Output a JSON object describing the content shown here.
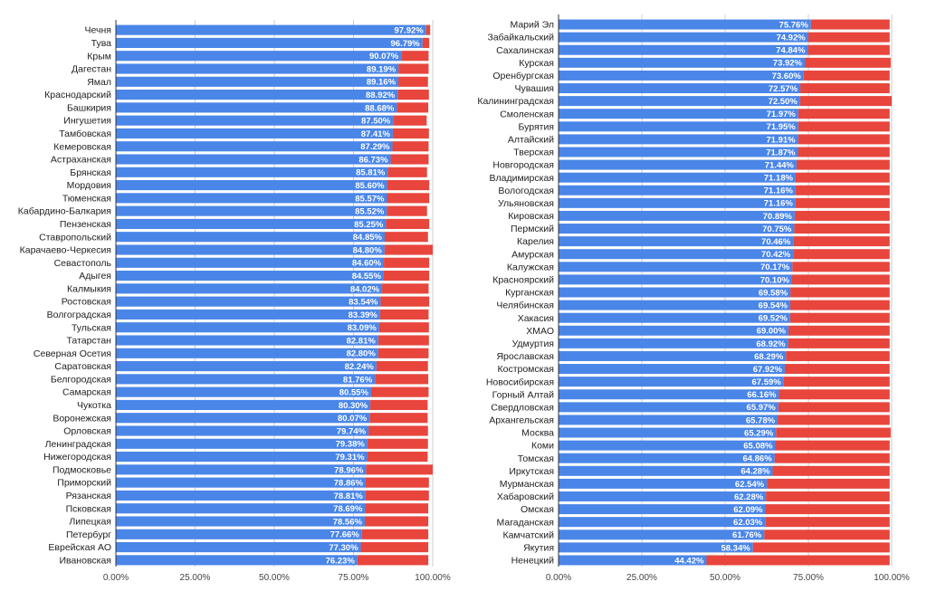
{
  "chart_data": [
    {
      "type": "bar",
      "orientation": "horizontal",
      "stacked": true,
      "percent_stacked": true,
      "grid": true,
      "legend": "none",
      "xlim": [
        0,
        100
      ],
      "xticks": [
        "0.00%",
        "25.00%",
        "50.00%",
        "75.00%",
        "100.00%"
      ],
      "colors": [
        "#4a86e8",
        "#e8453c"
      ],
      "categories": [
        "Чечня",
        "Тува",
        "Крым",
        "Дагестан",
        "Ямал",
        "Краснодарский",
        "Башкирия",
        "Ингушетия",
        "Тамбовская",
        "Кемеровская",
        "Астраханская",
        "Брянская",
        "Мордовия",
        "Тюменская",
        "Кабардино-Балкария",
        "Пензенская",
        "Ставропольский",
        "Карачаево-Черкесия",
        "Севастополь",
        "Адыгея",
        "Калмыкия",
        "Ростовская",
        "Волгоградская",
        "Тульская",
        "Татарстан",
        "Северная Осетия",
        "Саратовская",
        "Белгородская",
        "Самарская",
        "Чукотка",
        "Воронежская",
        "Орловская",
        "Ленинградская",
        "Нижегородская",
        "Подмосковье",
        "Приморский",
        "Рязанская",
        "Псковская",
        "Липецкая",
        "Петербург",
        "Еврейская АО",
        "Ивановская"
      ],
      "values": [
        97.92,
        96.79,
        90.07,
        89.19,
        89.16,
        88.92,
        88.68,
        87.5,
        87.41,
        87.29,
        86.73,
        85.81,
        85.6,
        85.57,
        85.52,
        85.25,
        84.85,
        84.8,
        84.6,
        84.55,
        84.02,
        83.54,
        83.39,
        83.09,
        82.81,
        82.8,
        82.24,
        81.76,
        80.55,
        80.3,
        80.07,
        79.74,
        79.38,
        79.31,
        78.96,
        78.86,
        78.81,
        78.69,
        78.56,
        77.66,
        77.3,
        76.23
      ],
      "value_labels": [
        "97.92%",
        "96.79%",
        "90.07%",
        "89.19%",
        "89.16%",
        "88.92%",
        "88.68%",
        "87.50%",
        "87.41%",
        "87.29%",
        "86.73%",
        "85.81%",
        "85.60%",
        "85.57%",
        "85.52%",
        "85.25%",
        "84.85%",
        "84.80%",
        "84.60%",
        "84.55%",
        "84.02%",
        "83.54%",
        "83.39%",
        "83.09%",
        "82.81%",
        "82.80%",
        "82.24%",
        "81.76%",
        "80.55%",
        "80.30%",
        "80.07%",
        "79.74%",
        "79.38%",
        "79.31%",
        "78.96%",
        "78.86%",
        "78.81%",
        "78.69%",
        "78.56%",
        "77.66%",
        "77.30%",
        "76.23%"
      ],
      "totals": [
        99.2,
        98.9,
        98.7,
        98.7,
        98.5,
        98.8,
        98.6,
        98.1,
        98.8,
        98.7,
        98.7,
        98.2,
        98.9,
        98.9,
        98.2,
        98.9,
        98.5,
        100.0,
        98.9,
        98.9,
        98.7,
        98.9,
        98.7,
        98.8,
        98.8,
        98.7,
        98.5,
        98.6,
        98.7,
        98.4,
        98.4,
        98.5,
        98.5,
        98.4,
        100.0,
        98.8,
        98.8,
        98.6,
        98.6,
        98.6,
        98.6,
        98.6
      ]
    },
    {
      "type": "bar",
      "orientation": "horizontal",
      "stacked": true,
      "percent_stacked": true,
      "grid": true,
      "legend": "none",
      "xlim": [
        0,
        100
      ],
      "xticks": [
        "0.00%",
        "25.00%",
        "50.00%",
        "75.00%",
        "100.00%"
      ],
      "colors": [
        "#4a86e8",
        "#e8453c"
      ],
      "categories": [
        "Марий Эл",
        "Забайкальский",
        "Сахалинская",
        "Курская",
        "Оренбургская",
        "Чувашия",
        "Калининградская",
        "Смоленская",
        "Бурятия",
        "Алтайский",
        "Тверская",
        "Новгородская",
        "Владимирская",
        "Вологодская",
        "Ульяновская",
        "Кировская",
        "Пермский",
        "Карелия",
        "Амурская",
        "Калужская",
        "Красноярский",
        "Курганская",
        "Челябинская",
        "Хакасия",
        "ХМАО",
        "Удмуртия",
        "Ярославская",
        "Костромская",
        "Новосибирская",
        "Горный Алтай",
        "Свердловская",
        "Архангельская",
        "Москва",
        "Коми",
        "Томская",
        "Иркутская",
        "Мурманская",
        "Хабаровский",
        "Омская",
        "Магаданская",
        "Камчатский",
        "Якутия",
        "Ненецкий"
      ],
      "values": [
        75.76,
        74.92,
        74.84,
        73.92,
        73.6,
        72.57,
        72.5,
        71.97,
        71.95,
        71.91,
        71.87,
        71.44,
        71.18,
        71.16,
        71.16,
        70.89,
        70.75,
        70.46,
        70.42,
        70.17,
        70.1,
        69.58,
        69.54,
        69.52,
        69.0,
        68.92,
        68.29,
        67.92,
        67.59,
        66.16,
        65.97,
        65.78,
        65.29,
        65.08,
        64.86,
        64.28,
        62.54,
        62.28,
        62.09,
        62.03,
        61.76,
        58.34,
        44.42
      ],
      "value_labels": [
        "75.76%",
        "74.92%",
        "74.84%",
        "73.92%",
        "73.60%",
        "72.57%",
        "72.50%",
        "71.97%",
        "71.95%",
        "71.91%",
        "71.87%",
        "71.44%",
        "71.18%",
        "71.16%",
        "71.16%",
        "70.89%",
        "70.75%",
        "70.46%",
        "70.42%",
        "70.17%",
        "70.10%",
        "69.58%",
        "69.54%",
        "69.52%",
        "69.00%",
        "68.92%",
        "68.29%",
        "67.92%",
        "67.59%",
        "66.16%",
        "65.97%",
        "65.78%",
        "65.29%",
        "65.08%",
        "64.86%",
        "64.28%",
        "62.54%",
        "62.28%",
        "62.09%",
        "62.03%",
        "61.76%",
        "58.34%",
        "44.42%"
      ],
      "totals": [
        99.4,
        99.4,
        99.4,
        99.7,
        99.4,
        99.4,
        100.0,
        99.4,
        99.4,
        99.4,
        99.4,
        99.4,
        99.4,
        99.4,
        99.4,
        99.4,
        99.4,
        99.4,
        99.4,
        99.4,
        99.4,
        99.4,
        99.4,
        99.4,
        99.4,
        99.4,
        99.4,
        99.4,
        99.4,
        99.4,
        99.4,
        99.4,
        99.7,
        99.4,
        99.4,
        99.4,
        99.4,
        99.4,
        99.4,
        99.4,
        99.4,
        99.4,
        99.4
      ]
    }
  ]
}
